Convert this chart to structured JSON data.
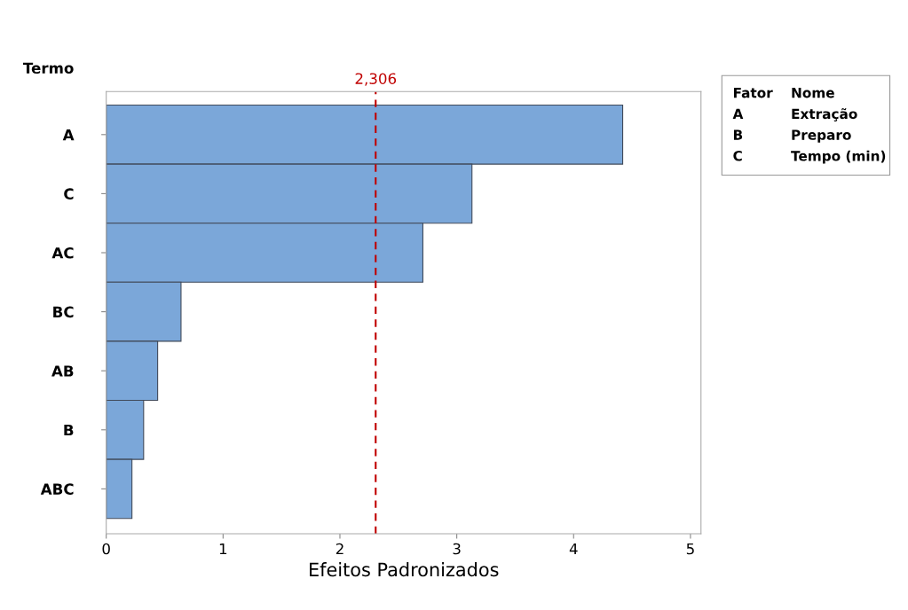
{
  "chart_data": {
    "type": "bar",
    "orientation": "horizontal",
    "xlabel": "Efeitos Padronizados",
    "ylabel": "Termo",
    "categories": [
      "A",
      "C",
      "AC",
      "BC",
      "AB",
      "B",
      "ABC"
    ],
    "values": [
      4.42,
      3.13,
      2.71,
      0.64,
      0.44,
      0.32,
      0.22
    ],
    "color": "#7ba7d9",
    "xlim": [
      0,
      5.09
    ],
    "xticks": [
      0,
      1,
      2,
      3,
      4,
      5
    ],
    "ref_lines": [
      {
        "axis": "x",
        "value": 2.306,
        "label": "2,306",
        "color": "#c00000",
        "line_style": "dashed"
      }
    ],
    "annotations": [
      "Fator",
      "Nome",
      "A",
      "Extração",
      "B",
      "Preparo",
      "C",
      "Tempo (min)"
    ],
    "grid": false,
    "legend": false
  }
}
